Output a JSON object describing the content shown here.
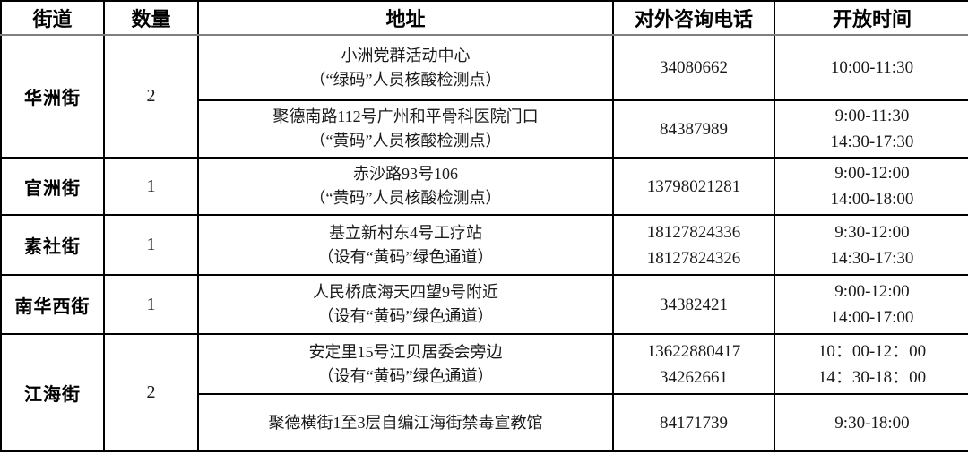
{
  "table": {
    "headers": {
      "street": "街道",
      "count": "数量",
      "address": "地址",
      "phone": "对外咨询电话",
      "hours": "开放时间"
    },
    "groups": [
      {
        "street": "华洲街",
        "count": "2",
        "rows": [
          {
            "address1": "小洲党群活动中心",
            "address2": "（“绿码”人员核酸检测点）",
            "phones": [
              "34080662"
            ],
            "hours": [
              "10:00-11:30"
            ]
          },
          {
            "address1": "聚德南路112号广州和平骨科医院门口",
            "address2": "（“黄码”人员核酸检测点）",
            "phones": [
              "84387989"
            ],
            "hours": [
              "9:00-11:30",
              "14:30-17:30"
            ]
          }
        ]
      },
      {
        "street": "官洲街",
        "count": "1",
        "rows": [
          {
            "address1": "赤沙路93号106",
            "address2": "（“黄码”人员核酸检测点）",
            "phones": [
              "13798021281"
            ],
            "hours": [
              "9:00-12:00",
              "14:00-18:00"
            ]
          }
        ]
      },
      {
        "street": "素社街",
        "count": "1",
        "rows": [
          {
            "address1": "基立新村东4号工疗站",
            "address2": "（设有“黄码”绿色通道）",
            "phones": [
              "18127824336",
              "18127824326"
            ],
            "hours": [
              "9:30-12:00",
              "14:30-17:30"
            ]
          }
        ]
      },
      {
        "street": "南华西街",
        "count": "1",
        "rows": [
          {
            "address1": "人民桥底海天四望9号附近",
            "address2": "（设有“黄码”绿色通道）",
            "phones": [
              "34382421"
            ],
            "hours": [
              "9:00-12:00",
              "14:00-17:00"
            ]
          }
        ]
      },
      {
        "street": "江海街",
        "count": "2",
        "rows": [
          {
            "address1": "安定里15号江贝居委会旁边",
            "address2": "（设有“黄码”绿色通道）",
            "phones": [
              "13622880417",
              "34262661"
            ],
            "hours": [
              "10：00-12：00",
              "14：30-18：00"
            ]
          },
          {
            "address1": "聚德横街1至3层自编江海街禁毒宣教馆",
            "address2": "",
            "phones": [
              "84171739"
            ],
            "hours": [
              "9:30-18:00"
            ]
          }
        ]
      }
    ]
  }
}
